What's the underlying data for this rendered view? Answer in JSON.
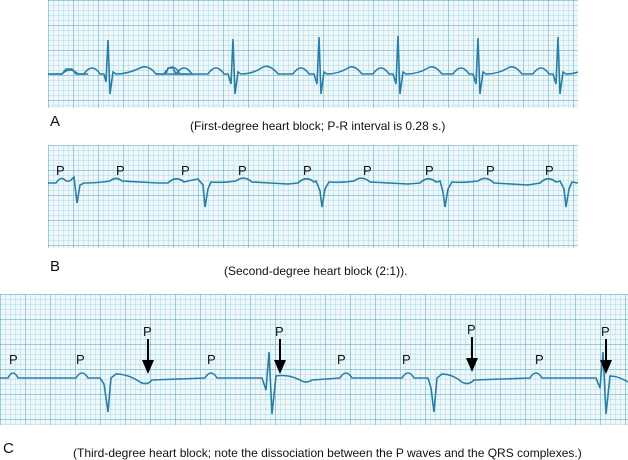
{
  "strips": [
    {
      "letter": "A",
      "caption": "(First-degree heart block; P-R interval is 0.28 s.)"
    },
    {
      "letter": "B",
      "caption": "(Second-degree heart block (2:1))."
    },
    {
      "letter": "C",
      "caption": "(Third-degree heart block; note the dissociation between the P waves and the QRS complexes.)"
    }
  ],
  "p_label": "P",
  "colors": {
    "trace": "#2a7fa6",
    "grid": "#8fc6d6",
    "paper": "#eef8fa",
    "arrow": "#000000"
  }
}
